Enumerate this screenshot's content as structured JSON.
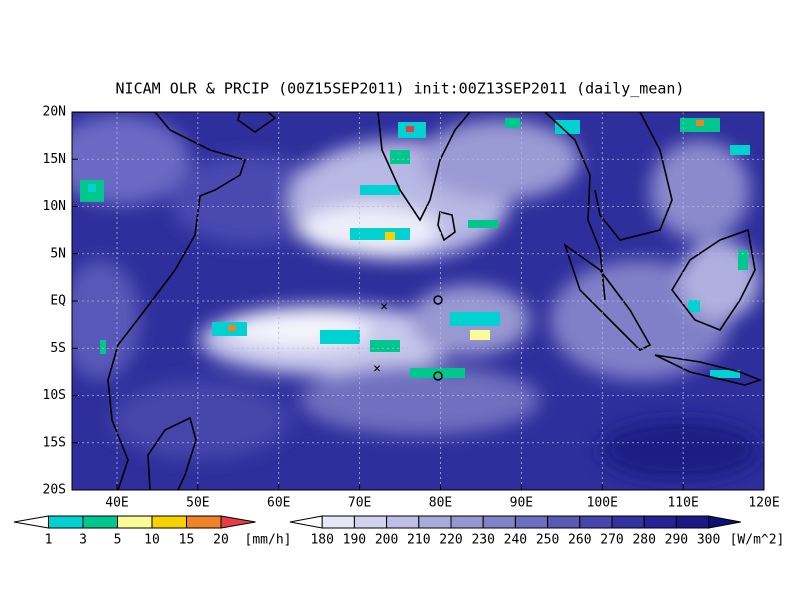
{
  "title": "NICAM OLR & PRCIP (00Z15SEP2011) init:00Z13SEP2011 (daily_mean)",
  "lat_labels": [
    "20N",
    "15N",
    "10N",
    "5N",
    "EQ",
    "5S",
    "10S",
    "15S",
    "20S"
  ],
  "lon_labels": [
    "40E",
    "50E",
    "60E",
    "70E",
    "80E",
    "90E",
    "100E",
    "110E",
    "120E"
  ],
  "precip_legend": {
    "levels": [
      1,
      3,
      5,
      10,
      15,
      20
    ],
    "unit": "[mm/h]",
    "colors": [
      "#ffffff",
      "#00d2d2",
      "#00c88c",
      "#fafa96",
      "#f5d200",
      "#f08228",
      "#e63c46"
    ]
  },
  "olr_legend": {
    "levels": [
      180,
      190,
      200,
      210,
      220,
      230,
      240,
      250,
      260,
      270,
      280,
      290,
      300
    ],
    "unit": "[W/m^2]",
    "colors": [
      "#ffffff",
      "#e6e6f5",
      "#d2d2ee",
      "#bebee6",
      "#aaaadc",
      "#9696d2",
      "#8282c8",
      "#6e6ebe",
      "#5a5ab4",
      "#4646aa",
      "#3232a0",
      "#232396",
      "#191987",
      "#0f0f78"
    ]
  }
}
